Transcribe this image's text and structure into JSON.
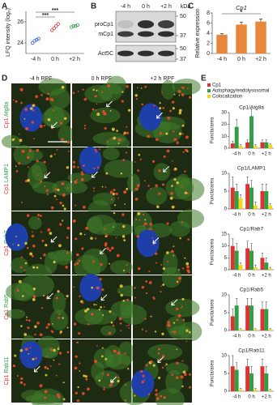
{
  "panel_letters": [
    "A",
    "B",
    "C",
    "D",
    "E"
  ],
  "chart_data": [
    {
      "type": "dot",
      "ylabel": "LFQ intensity (log₂)",
      "categories": [
        "-4 h",
        "0 h",
        "+2 h"
      ],
      "colors": [
        "#3b5bd6",
        "#d9322f",
        "#2e9e4a"
      ],
      "values": [
        [
          24.0,
          24.2,
          24.3,
          24.4
        ],
        [
          25.2,
          25.4,
          25.6,
          25.8
        ],
        [
          25.5,
          25.6,
          25.6,
          25.7
        ]
      ],
      "ylim": [
        23,
        27
      ],
      "yticks": [
        24,
        26
      ],
      "annotations": [
        "***",
        "***"
      ]
    },
    {
      "type": "bar",
      "title": "Cp1",
      "ylabel": "Relative expression",
      "categories": [
        "-4 h",
        "0 h",
        "+2 h"
      ],
      "color": "#e8873a",
      "values": [
        3.7,
        5.7,
        6.3
      ],
      "errors": [
        0.2,
        0.5,
        0.5
      ],
      "ylim": [
        0,
        8
      ],
      "yticks": [
        0,
        2,
        4,
        6,
        8
      ],
      "annotations": [
        "*"
      ]
    },
    {
      "type": "grouped_bar",
      "title": "Cp1/Atg8a",
      "ylabel": "Puncta/area",
      "categories": [
        "-4 h",
        "0 h",
        "+2 h"
      ],
      "ylim": [
        0,
        30
      ],
      "yticks": [
        0,
        10,
        20,
        30
      ],
      "series": [
        {
          "name": "Cp1",
          "color": "#e03131",
          "values": [
            4,
            5,
            5
          ],
          "errors": [
            2,
            2,
            2
          ]
        },
        {
          "name": "Autophagy/endolysosomal",
          "color": "#2f9e44",
          "values": [
            18,
            27,
            5
          ],
          "errors": [
            6,
            6,
            2
          ]
        },
        {
          "name": "Colocalization",
          "color": "#f2d81a",
          "values": [
            2,
            2,
            3
          ],
          "errors": [
            1,
            1,
            1
          ]
        }
      ]
    },
    {
      "type": "grouped_bar",
      "title": "Cp1/LAMP1",
      "ylabel": "Puncta/area",
      "categories": [
        "-4 h",
        "0 h",
        "+2 h"
      ],
      "ylim": [
        0,
        10
      ],
      "yticks": [
        0,
        5,
        10
      ],
      "series": [
        {
          "color": "#e03131",
          "values": [
            6,
            7,
            5
          ],
          "errors": [
            3,
            2,
            2
          ]
        },
        {
          "color": "#2f9e44",
          "values": [
            5,
            6,
            5
          ],
          "errors": [
            2,
            2,
            2
          ]
        },
        {
          "color": "#f2d81a",
          "values": [
            3,
            1,
            1
          ],
          "errors": [
            1,
            1,
            0.5
          ]
        }
      ]
    },
    {
      "type": "grouped_bar",
      "title": "Cp1/Rab7",
      "ylabel": "Puncta/area",
      "categories": [
        "-4 h",
        "0 h",
        "+2 h"
      ],
      "ylim": [
        0,
        15
      ],
      "yticks": [
        0,
        5,
        10,
        15
      ],
      "series": [
        {
          "color": "#e03131",
          "values": [
            10,
            9,
            5
          ],
          "errors": [
            3,
            3,
            2
          ]
        },
        {
          "color": "#2f9e44",
          "values": [
            8,
            8,
            3
          ],
          "errors": [
            3,
            3,
            2
          ]
        },
        {
          "color": "#f2d81a",
          "values": [
            2,
            1,
            0.5
          ],
          "errors": [
            1,
            1,
            0.5
          ]
        }
      ]
    },
    {
      "type": "grouped_bar",
      "title": "Cp1/Rab5",
      "ylabel": "Puncta/area",
      "categories": [
        "-4 h",
        "0 h",
        "+2 h"
      ],
      "ylim": [
        0,
        10
      ],
      "yticks": [
        0,
        5,
        10
      ],
      "series": [
        {
          "color": "#e03131",
          "values": [
            4,
            7,
            6
          ],
          "errors": [
            2,
            2,
            2
          ]
        },
        {
          "color": "#2f9e44",
          "values": [
            7,
            7,
            6
          ],
          "errors": [
            2,
            2,
            2
          ]
        },
        {
          "color": "#f2d81a",
          "values": [
            0.3,
            0.3,
            0.3
          ],
          "errors": [
            0.2,
            0.2,
            0.2
          ]
        }
      ]
    },
    {
      "type": "grouped_bar",
      "title": "Cp1/Rab11",
      "ylabel": "Puncta/area",
      "categories": [
        "-4 h",
        "0 h",
        "+2 h"
      ],
      "ylim": [
        0,
        10
      ],
      "yticks": [
        0,
        5,
        10
      ],
      "series": [
        {
          "color": "#e03131",
          "values": [
            7,
            7,
            7
          ],
          "errors": [
            3,
            2,
            2
          ]
        },
        {
          "color": "#2f9e44",
          "values": [
            6,
            5,
            5
          ],
          "errors": [
            2,
            2,
            2
          ]
        },
        {
          "color": "#f2d81a",
          "values": [
            0.5,
            0.5,
            0.3
          ],
          "errors": [
            0.3,
            0.3,
            0.2
          ]
        }
      ]
    }
  ],
  "blot": {
    "lanes": [
      "-4 h",
      "0 h",
      "+2 h"
    ],
    "unit": "kDa",
    "bands": [
      "proCp1",
      "mCp1",
      "Act5C"
    ],
    "markers": [
      50,
      37,
      50,
      37
    ]
  },
  "micrographs": {
    "columns": [
      "-4 h RPF",
      "0 h RPF",
      "+2 h RPF"
    ],
    "rows": [
      {
        "red": "Cp1",
        "green": "Atg8a"
      },
      {
        "red": "Cp1",
        "green": "LAMP1"
      },
      {
        "red": "Cp1",
        "green": "Rab7"
      },
      {
        "red": "Cp1",
        "green": "Rab5"
      },
      {
        "red": "Cp1",
        "green": "Rab11"
      }
    ]
  }
}
